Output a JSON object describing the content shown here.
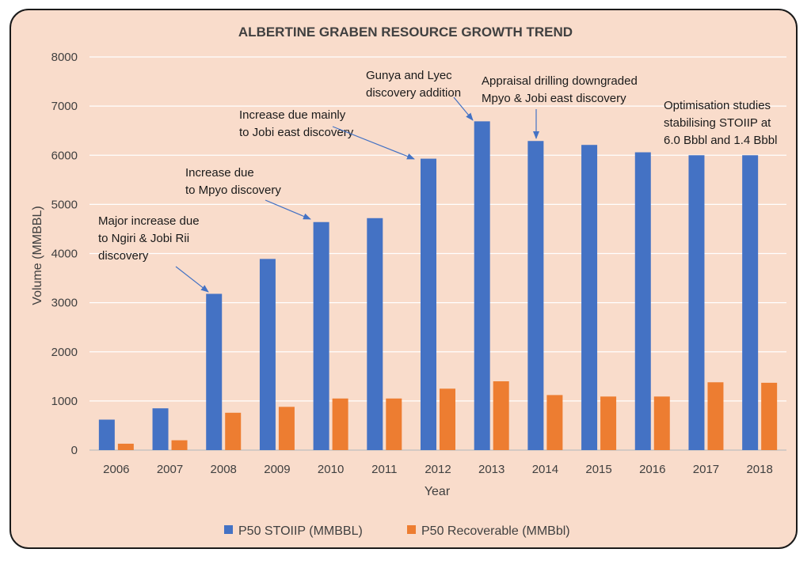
{
  "chart_data": {
    "type": "bar",
    "title": "ALBERTINE GRABEN RESOURCE GROWTH TREND",
    "xlabel": "Year",
    "ylabel": "Volume (MMBBL)",
    "ylim": [
      0,
      8000
    ],
    "yticks": [
      "0",
      "1000",
      "2000",
      "3000",
      "4000",
      "5000",
      "6000",
      "7000",
      "8000"
    ],
    "grid": true,
    "legend_position": "bottom",
    "categories": [
      "2006",
      "2007",
      "2008",
      "2009",
      "2010",
      "2011",
      "2012",
      "2013",
      "2014",
      "2015",
      "2016",
      "2017",
      "2018"
    ],
    "series": [
      {
        "name": "P50 STOIIP (MMBBL)",
        "color": "#4472c4",
        "values": [
          620,
          850,
          3180,
          3890,
          4640,
          4720,
          5930,
          6690,
          6290,
          6210,
          6060,
          6000,
          6000
        ]
      },
      {
        "name": "P50 Recoverable (MMBbl)",
        "color": "#ed7d31",
        "values": [
          130,
          200,
          760,
          880,
          1050,
          1050,
          1250,
          1400,
          1120,
          1090,
          1090,
          1380,
          1370
        ]
      }
    ],
    "annotations": [
      {
        "lines": [
          "Major increase due",
          "to Ngiri & Jobi Rii",
          "discovery"
        ],
        "points_to": "2008"
      },
      {
        "lines": [
          "Increase due",
          "to Mpyo discovery"
        ],
        "points_to": "2010"
      },
      {
        "lines": [
          "Increase due mainly",
          "to Jobi east discovery"
        ],
        "points_to": "2012"
      },
      {
        "lines": [
          "Gunya and Lyec",
          "discovery addition"
        ],
        "points_to": "2013"
      },
      {
        "lines": [
          "Appraisal drilling downgraded",
          "Mpyo & Jobi east discovery"
        ],
        "points_to": "2014"
      },
      {
        "lines": [
          "Optimisation studies",
          "stabilising STOIIP at",
          "6.0 Bbbl and 1.4 Bbbl"
        ],
        "points_to": ""
      }
    ]
  }
}
